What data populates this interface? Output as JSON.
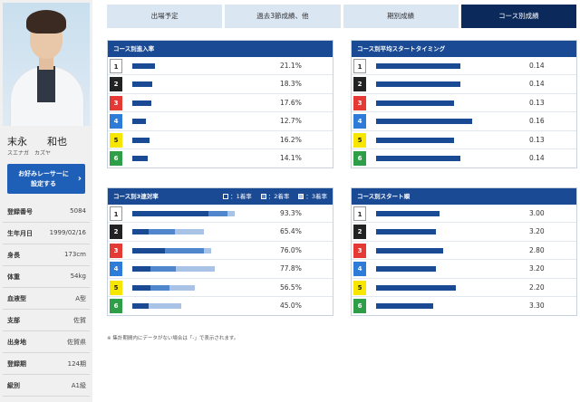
{
  "racer": {
    "name": "末永　　和也",
    "kana": "スエナガ　カズヤ",
    "favorite_button": "お好みレーサーに\n設定する",
    "favorite_arrow": "›",
    "profile": [
      {
        "label": "登録番号",
        "value": "5084"
      },
      {
        "label": "生年月日",
        "value": "1999/02/16"
      },
      {
        "label": "身長",
        "value": "173cm"
      },
      {
        "label": "体重",
        "value": "54kg"
      },
      {
        "label": "血液型",
        "value": "A型"
      },
      {
        "label": "支部",
        "value": "佐賀"
      },
      {
        "label": "出身地",
        "value": "佐賀県"
      },
      {
        "label": "登録期",
        "value": "124期"
      },
      {
        "label": "級別",
        "value": "A1級"
      }
    ]
  },
  "tabs": [
    {
      "label": "出場予定",
      "active": false
    },
    {
      "label": "過去3節成績、他",
      "active": false
    },
    {
      "label": "期別成績",
      "active": false
    },
    {
      "label": "コース別成績",
      "active": true
    }
  ],
  "colors": {
    "header": "#1a4a93",
    "tab_active": "#0b2a5b",
    "first": "#1a4a93",
    "second": "#4f86cc",
    "third": "#a8c3e6"
  },
  "panels": {
    "entry_rate": {
      "title": "コース別進入率",
      "rows": [
        {
          "course": "1",
          "value": "21.1%",
          "fill": 0.211
        },
        {
          "course": "2",
          "value": "18.3%",
          "fill": 0.183
        },
        {
          "course": "3",
          "value": "17.6%",
          "fill": 0.176
        },
        {
          "course": "4",
          "value": "12.7%",
          "fill": 0.127
        },
        {
          "course": "5",
          "value": "16.2%",
          "fill": 0.162
        },
        {
          "course": "6",
          "value": "14.1%",
          "fill": 0.141
        }
      ]
    },
    "avg_st": {
      "title": "コース別平均スタートタイミング",
      "rows": [
        {
          "course": "1",
          "value": "0.14",
          "fill": 0.14
        },
        {
          "course": "2",
          "value": "0.14",
          "fill": 0.14
        },
        {
          "course": "3",
          "value": "0.13",
          "fill": 0.13
        },
        {
          "course": "4",
          "value": "0.16",
          "fill": 0.16
        },
        {
          "course": "5",
          "value": "0.13",
          "fill": 0.13
        },
        {
          "course": "6",
          "value": "0.14",
          "fill": 0.14
        }
      ]
    },
    "top3_rate": {
      "title": "コース別3連対率",
      "legend": [
        "：1着率",
        "：2着率",
        "：3着率"
      ],
      "rows": [
        {
          "course": "1",
          "value": "93.3%",
          "parts": [
            0.6,
            0.15,
            0.06
          ]
        },
        {
          "course": "2",
          "value": "65.4%",
          "parts": [
            0.13,
            0.21,
            0.23
          ]
        },
        {
          "course": "3",
          "value": "76.0%",
          "parts": [
            0.26,
            0.31,
            0.06
          ]
        },
        {
          "course": "4",
          "value": "77.8%",
          "parts": [
            0.14,
            0.2,
            0.31
          ]
        },
        {
          "course": "5",
          "value": "56.5%",
          "parts": [
            0.14,
            0.15,
            0.2
          ]
        },
        {
          "course": "6",
          "value": "45.0%",
          "parts": [
            0.13,
            0.0,
            0.26
          ]
        }
      ]
    },
    "start_rank": {
      "title": "コース別スタート順",
      "rows": [
        {
          "course": "1",
          "value": "3.00",
          "fill": 0.5
        },
        {
          "course": "2",
          "value": "3.20",
          "fill": 0.47
        },
        {
          "course": "3",
          "value": "2.80",
          "fill": 0.53
        },
        {
          "course": "4",
          "value": "3.20",
          "fill": 0.47
        },
        {
          "course": "5",
          "value": "2.20",
          "fill": 0.63
        },
        {
          "course": "6",
          "value": "3.30",
          "fill": 0.45
        }
      ]
    }
  },
  "footnote": "※ 集計期間内にデータがない場合は「-」で表示されます。"
}
